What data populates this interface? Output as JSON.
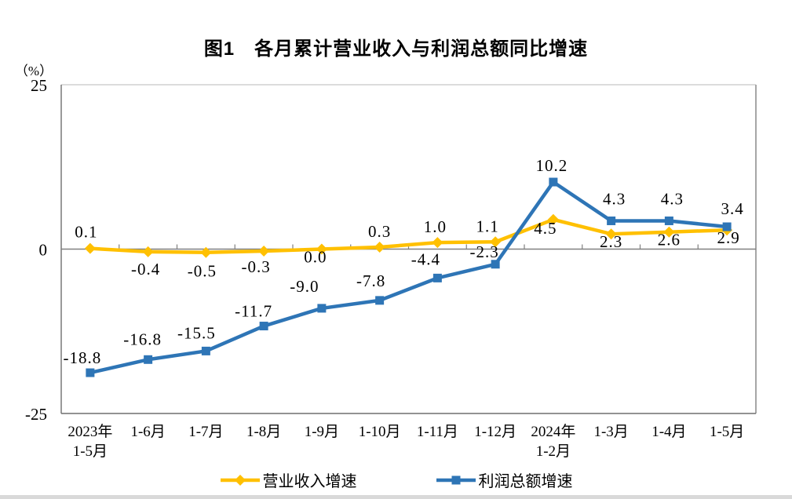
{
  "figure": {
    "title": "图1　各月累计营业收入与利润总额同比增速"
  },
  "chart_data": {
    "type": "line",
    "title": "图1　各月累计营业收入与利润总额同比增速",
    "unit_label": "（%）",
    "categories": [
      "2023年\n1-5月",
      "1-6月",
      "1-7月",
      "1-8月",
      "1-9月",
      "1-10月",
      "1-11月",
      "1-12月",
      "2024年\n1-2月",
      "1-3月",
      "1-4月",
      "1-5月"
    ],
    "ylim": [
      -25,
      25
    ],
    "y_ticks": [
      25,
      0,
      -25
    ],
    "grid": false,
    "legend_position": "bottom",
    "series": [
      {
        "key": "revenue",
        "name": "营业收入增速",
        "color": "#FFC000",
        "marker": "diamond",
        "values": [
          0.1,
          -0.4,
          -0.5,
          -0.3,
          0.0,
          0.3,
          1.0,
          1.1,
          4.5,
          2.3,
          2.6,
          2.9
        ],
        "label_side": [
          "above",
          "below",
          "below",
          "below",
          "below",
          "above",
          "above",
          "above",
          "below",
          "below",
          "below",
          "below"
        ],
        "label_dx": [
          -5,
          -3,
          -5,
          -10,
          -8,
          0,
          -3,
          -10,
          -10,
          0,
          0,
          2
        ],
        "label_dy": [
          -14,
          29,
          31,
          27,
          17,
          -13,
          -13,
          -13,
          18,
          17,
          17,
          17
        ]
      },
      {
        "key": "profit",
        "name": "利润总额增速",
        "color": "#2E75B6",
        "marker": "square",
        "values": [
          -18.8,
          -16.8,
          -15.5,
          -11.7,
          -9.0,
          -7.8,
          -4.4,
          -2.3,
          10.2,
          4.3,
          4.3,
          3.4
        ],
        "label_side": [
          "above",
          "above",
          "above",
          "above",
          "above",
          "above",
          "above",
          "above",
          "above",
          "above",
          "above",
          "above"
        ],
        "label_dx": [
          -10,
          -7,
          -12,
          -13,
          -22,
          -11,
          -15,
          -14,
          -2,
          4,
          4,
          7
        ],
        "label_dy": [
          -12,
          -19,
          -16,
          -12,
          -21,
          -18,
          -17,
          -9,
          -14,
          -21,
          -21,
          -16
        ]
      }
    ]
  },
  "legend": {
    "items": [
      {
        "label": "营业收入增速"
      },
      {
        "label": "利润总额增速"
      }
    ]
  }
}
